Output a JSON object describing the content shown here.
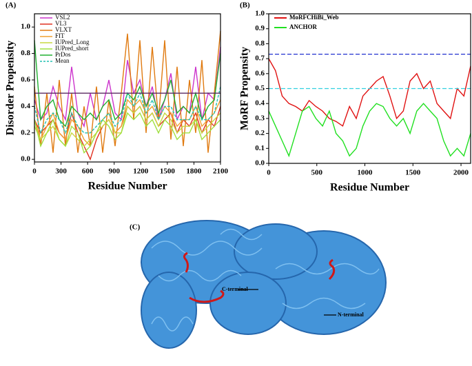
{
  "chart_data": [
    {
      "type": "line",
      "panel": "(A)",
      "x_label": "Residue Number",
      "y_label": "Disorder Propensity",
      "x": [
        0,
        70,
        140,
        210,
        280,
        350,
        420,
        490,
        560,
        630,
        700,
        770,
        840,
        910,
        980,
        1050,
        1120,
        1190,
        1260,
        1330,
        1400,
        1470,
        1540,
        1610,
        1680,
        1750,
        1820,
        1890,
        1960,
        2030,
        2100
      ],
      "xlim": [
        0,
        2100
      ],
      "xticks": [
        0,
        300,
        600,
        900,
        1200,
        1500,
        1800,
        2100
      ],
      "ylim": [
        -0.02,
        1.1
      ],
      "yticks": [
        {
          "value": 0,
          "label": "0.0"
        },
        {
          "value": 0.2,
          "label": "0.2"
        },
        {
          "value": 0.4,
          "label": "0.4"
        },
        {
          "value": 0.6,
          "label": "0.6"
        },
        {
          "value": 0.8,
          "label": "0.8"
        },
        {
          "value": 1,
          "label": "1.0"
        }
      ],
      "legend": "upper-left",
      "reference_lines": [
        {
          "value": 0.5,
          "color": "#5a2a60",
          "dashed": false
        }
      ],
      "series": [
        {
          "name": "VSL2",
          "color": "#cc33cc",
          "values": [
            0.45,
            0.3,
            0.35,
            0.55,
            0.4,
            0.3,
            0.7,
            0.35,
            0.25,
            0.5,
            0.3,
            0.4,
            0.6,
            0.35,
            0.3,
            0.75,
            0.5,
            0.6,
            0.4,
            0.55,
            0.3,
            0.45,
            0.65,
            0.3,
            0.4,
            0.35,
            0.7,
            0.3,
            0.5,
            0.45,
            0.85
          ]
        },
        {
          "name": "VL3",
          "color": "#e03020",
          "values": [
            0.3,
            0.2,
            0.25,
            0.3,
            0.2,
            0.15,
            0.35,
            0.2,
            0.1,
            0.0,
            0.15,
            0.25,
            0.3,
            0.2,
            0.25,
            0.4,
            0.35,
            0.4,
            0.3,
            0.35,
            0.25,
            0.3,
            0.35,
            0.2,
            0.3,
            0.25,
            0.35,
            0.2,
            0.3,
            0.25,
            0.4
          ]
        },
        {
          "name": "VLXT",
          "color": "#e07a10",
          "values": [
            0.55,
            0.1,
            0.5,
            0.05,
            0.6,
            0.1,
            0.5,
            0.05,
            0.4,
            0.1,
            0.55,
            0.05,
            0.45,
            0.1,
            0.5,
            0.95,
            0.3,
            0.9,
            0.2,
            0.85,
            0.3,
            0.9,
            0.15,
            0.7,
            0.1,
            0.6,
            0.2,
            0.75,
            0.05,
            0.5,
            0.97
          ]
        },
        {
          "name": "FIT",
          "color": "#f0a030",
          "values": [
            0.3,
            0.15,
            0.25,
            0.35,
            0.2,
            0.15,
            0.3,
            0.25,
            0.15,
            0.1,
            0.2,
            0.3,
            0.35,
            0.2,
            0.25,
            0.45,
            0.4,
            0.45,
            0.35,
            0.4,
            0.3,
            0.4,
            0.35,
            0.25,
            0.3,
            0.3,
            0.4,
            0.25,
            0.3,
            0.35,
            0.45
          ]
        },
        {
          "name": "IUPred_Long",
          "color": "#c8d840",
          "values": [
            0.25,
            0.15,
            0.2,
            0.25,
            0.15,
            0.1,
            0.2,
            0.15,
            0.1,
            0.15,
            0.2,
            0.25,
            0.3,
            0.2,
            0.2,
            0.4,
            0.35,
            0.4,
            0.3,
            0.35,
            0.25,
            0.35,
            0.3,
            0.2,
            0.25,
            0.25,
            0.3,
            0.2,
            0.25,
            0.3,
            0.35
          ]
        },
        {
          "name": "IUPred_short",
          "color": "#a0e040",
          "values": [
            0.3,
            0.1,
            0.2,
            0.3,
            0.15,
            0.1,
            0.25,
            0.2,
            0.05,
            0.1,
            0.2,
            0.3,
            0.25,
            0.15,
            0.2,
            0.35,
            0.3,
            0.35,
            0.25,
            0.3,
            0.2,
            0.3,
            0.25,
            0.15,
            0.2,
            0.2,
            0.3,
            0.15,
            0.2,
            0.25,
            0.3
          ]
        },
        {
          "name": "PrDos",
          "color": "#20b030",
          "values": [
            0.9,
            0.3,
            0.4,
            0.45,
            0.3,
            0.25,
            0.4,
            0.35,
            0.3,
            0.35,
            0.3,
            0.4,
            0.45,
            0.3,
            0.35,
            0.5,
            0.45,
            0.55,
            0.4,
            0.5,
            0.35,
            0.45,
            0.6,
            0.35,
            0.4,
            0.35,
            0.5,
            0.3,
            0.4,
            0.45,
            0.8
          ]
        },
        {
          "name": "Mean",
          "color": "#20c0b0",
          "dashed": true,
          "values": [
            0.4,
            0.2,
            0.3,
            0.35,
            0.3,
            0.2,
            0.35,
            0.25,
            0.2,
            0.2,
            0.25,
            0.3,
            0.35,
            0.25,
            0.3,
            0.5,
            0.4,
            0.5,
            0.35,
            0.45,
            0.3,
            0.4,
            0.4,
            0.3,
            0.3,
            0.3,
            0.4,
            0.3,
            0.3,
            0.35,
            0.55
          ]
        }
      ]
    },
    {
      "type": "line",
      "panel": "(B)",
      "x_label": "Residue Number",
      "y_label": "MoRF Propensity",
      "x": [
        0,
        70,
        140,
        210,
        280,
        350,
        420,
        490,
        560,
        630,
        700,
        770,
        840,
        910,
        980,
        1050,
        1120,
        1190,
        1260,
        1330,
        1400,
        1470,
        1540,
        1610,
        1680,
        1750,
        1820,
        1890,
        1960,
        2030,
        2100
      ],
      "xlim": [
        0,
        2100
      ],
      "xticks": [
        0,
        500,
        1000,
        1500,
        2000
      ],
      "ylim": [
        0,
        1
      ],
      "yticks": [
        {
          "value": 0,
          "label": "0.0"
        },
        {
          "value": 0.1,
          "label": "0.1"
        },
        {
          "value": 0.2,
          "label": "0.2"
        },
        {
          "value": 0.3,
          "label": "0.3"
        },
        {
          "value": 0.4,
          "label": "0.4"
        },
        {
          "value": 0.5,
          "label": "0.5"
        },
        {
          "value": 0.6,
          "label": "0.6"
        },
        {
          "value": 0.7,
          "label": "0.7"
        },
        {
          "value": 0.8,
          "label": "0.8"
        },
        {
          "value": 0.9,
          "label": "0.9"
        },
        {
          "value": 1,
          "label": "1.0"
        }
      ],
      "legend": "upper-left",
      "reference_lines": [
        {
          "value": 0.73,
          "color": "#2030d0",
          "dashed": true
        },
        {
          "value": 0.5,
          "color": "#30d0e0",
          "dashed": true
        }
      ],
      "series": [
        {
          "name": "MoRFCHiBi_Web",
          "color": "#e01010",
          "values": [
            0.7,
            0.62,
            0.45,
            0.4,
            0.38,
            0.35,
            0.42,
            0.38,
            0.35,
            0.3,
            0.28,
            0.25,
            0.38,
            0.3,
            0.45,
            0.5,
            0.55,
            0.58,
            0.45,
            0.3,
            0.35,
            0.55,
            0.6,
            0.5,
            0.55,
            0.4,
            0.35,
            0.3,
            0.5,
            0.45,
            0.65
          ]
        },
        {
          "name": "ANCHOR",
          "color": "#20e020",
          "values": [
            0.35,
            0.25,
            0.15,
            0.05,
            0.2,
            0.35,
            0.38,
            0.3,
            0.25,
            0.35,
            0.2,
            0.15,
            0.05,
            0.1,
            0.25,
            0.35,
            0.4,
            0.38,
            0.3,
            0.25,
            0.3,
            0.2,
            0.35,
            0.4,
            0.35,
            0.3,
            0.15,
            0.05,
            0.1,
            0.05,
            0.2
          ]
        }
      ]
    }
  ],
  "structure": {
    "panel": "(C)",
    "labels": [
      "C-terminal",
      "N-terminal"
    ]
  }
}
